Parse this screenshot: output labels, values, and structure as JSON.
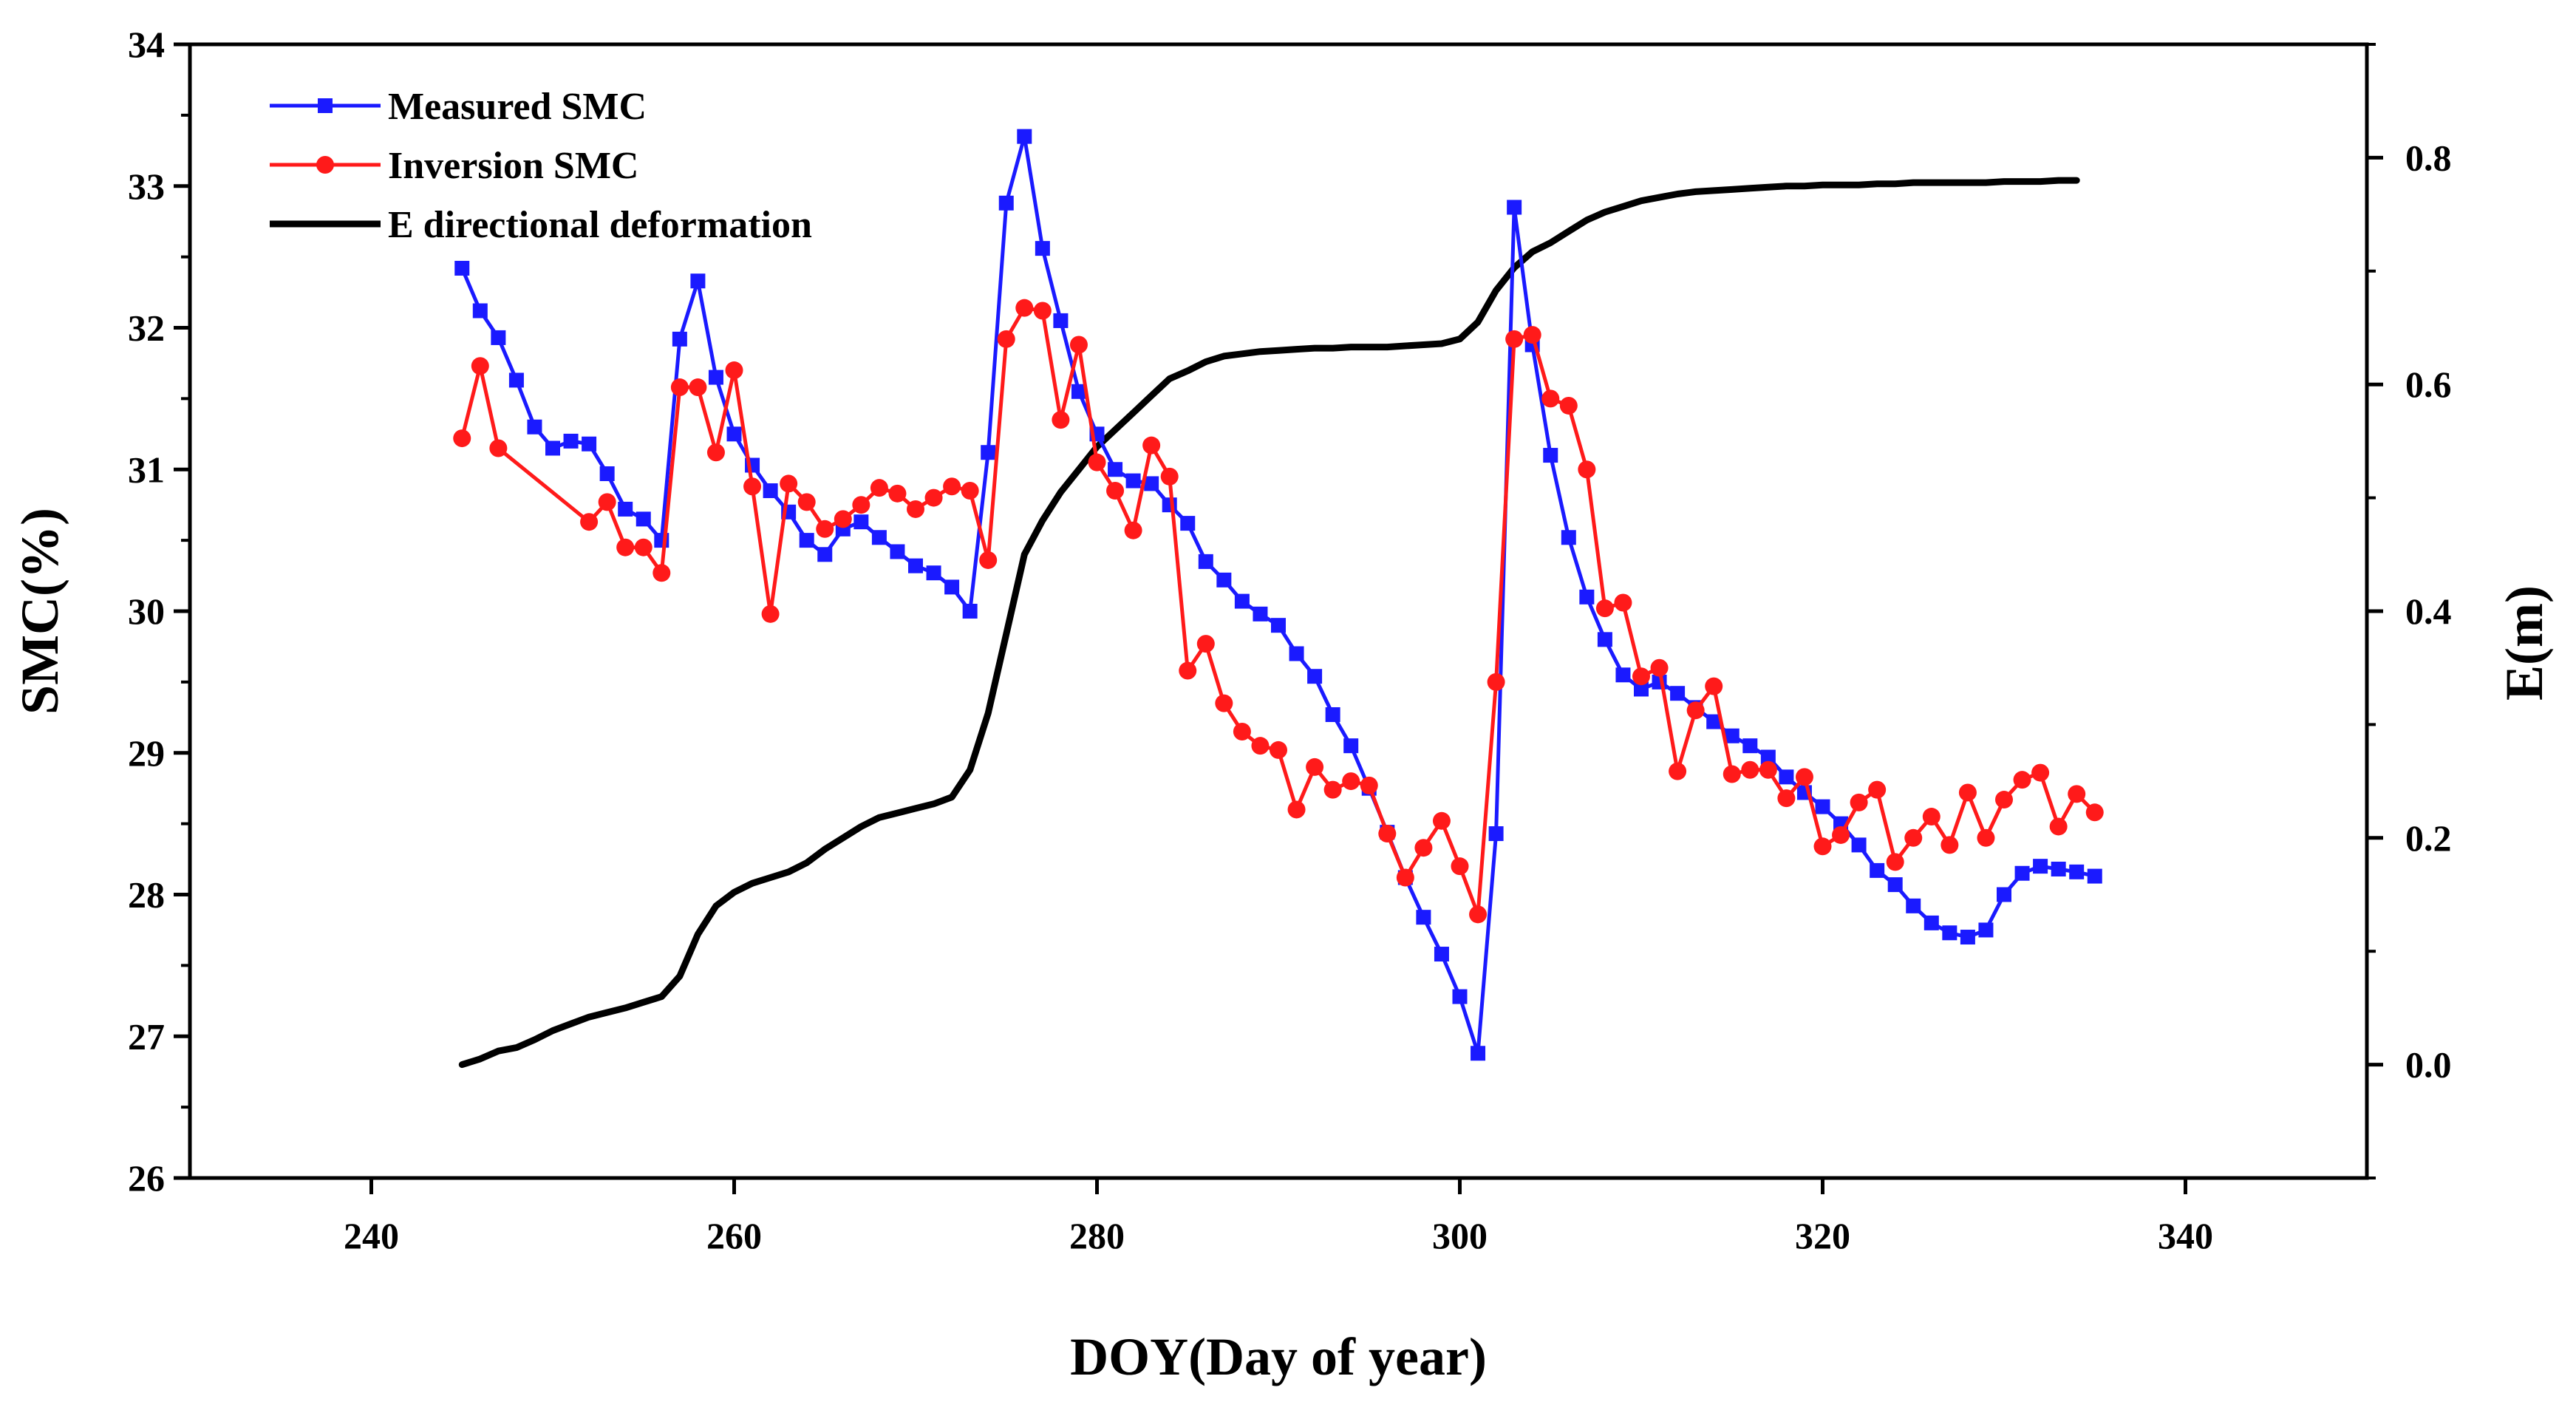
{
  "chart_data": {
    "type": "line",
    "title": "",
    "xlabel": "DOY(Day of year)",
    "ylabel": "SMC(%)",
    "y2label": "E(m)",
    "xlim": [
      230,
      350
    ],
    "ylim": [
      26,
      34
    ],
    "y2lim": [
      -0.1,
      0.9
    ],
    "xticks": [
      240,
      260,
      280,
      300,
      320,
      340
    ],
    "yticks": [
      26,
      27,
      28,
      29,
      30,
      31,
      32,
      33,
      34
    ],
    "y2ticks": [
      0.0,
      0.2,
      0.4,
      0.6,
      0.8
    ],
    "xtick_labels": [
      "240",
      "260",
      "280",
      "300",
      "320",
      "340"
    ],
    "ytick_labels": [
      "26",
      "27",
      "28",
      "29",
      "30",
      "31",
      "32",
      "33",
      "34"
    ],
    "y2tick_labels": [
      "0.0",
      "0.2",
      "0.4",
      "0.6",
      "0.8"
    ],
    "legend_position": "top-left",
    "series": [
      {
        "name": "Measured SMC",
        "axis": "left",
        "color": "#1a1aff",
        "marker": "square",
        "x": [
          245,
          246,
          247,
          248,
          249,
          250,
          251,
          252,
          253,
          254,
          255,
          256,
          257,
          258,
          259,
          260,
          261,
          262,
          263,
          264,
          265,
          266,
          267,
          268,
          269,
          270,
          271,
          272,
          273,
          274,
          275,
          276,
          277,
          278,
          279,
          280,
          281,
          282,
          283,
          284,
          285,
          286,
          287,
          288,
          289,
          290,
          291,
          292,
          293,
          294,
          295,
          296,
          297,
          298,
          299,
          300,
          301,
          302,
          303,
          304,
          305,
          306,
          307,
          308,
          309,
          310,
          311,
          312,
          313,
          314,
          315,
          316,
          317,
          318,
          319,
          320,
          321,
          322,
          323,
          324,
          325,
          326,
          327,
          328,
          329,
          330,
          331,
          332,
          333,
          334,
          335
        ],
        "y": [
          32.42,
          32.12,
          31.93,
          31.63,
          31.3,
          31.15,
          31.2,
          31.18,
          30.97,
          30.72,
          30.65,
          30.5,
          31.92,
          32.33,
          31.65,
          31.25,
          31.03,
          30.85,
          30.7,
          30.5,
          30.4,
          30.58,
          30.63,
          30.52,
          30.42,
          30.32,
          30.27,
          30.17,
          30.0,
          31.12,
          32.88,
          33.35,
          32.56,
          32.05,
          31.55,
          31.25,
          31.0,
          30.92,
          30.9,
          30.75,
          30.62,
          30.35,
          30.22,
          30.07,
          29.98,
          29.9,
          29.7,
          29.54,
          29.27,
          29.05,
          28.75,
          28.44,
          28.12,
          27.84,
          27.58,
          27.28,
          26.88,
          28.43,
          32.85,
          31.88,
          31.1,
          30.52,
          30.1,
          29.8,
          29.55,
          29.45,
          29.5,
          29.42,
          29.32,
          29.22,
          29.12,
          29.05,
          28.97,
          28.83,
          28.72,
          28.62,
          28.5,
          28.35,
          28.17,
          28.07,
          27.92,
          27.8,
          27.73,
          27.7,
          27.75,
          28.0,
          28.15,
          28.2,
          28.18,
          28.16,
          28.13
        ]
      },
      {
        "name": "Inversion SMC",
        "axis": "left",
        "color": "#ff1a1a",
        "marker": "circle",
        "x": [
          245,
          246,
          247,
          252,
          253,
          254,
          255,
          256,
          257,
          258,
          259,
          260,
          261,
          262,
          263,
          264,
          265,
          266,
          267,
          268,
          269,
          270,
          271,
          272,
          273,
          274,
          275,
          276,
          277,
          278,
          279,
          280,
          281,
          282,
          283,
          284,
          285,
          286,
          287,
          288,
          289,
          290,
          291,
          292,
          293,
          294,
          295,
          296,
          297,
          298,
          299,
          300,
          301,
          302,
          303,
          304,
          305,
          306,
          307,
          308,
          309,
          310,
          311,
          312,
          313,
          314,
          315,
          316,
          317,
          318,
          319,
          320,
          321,
          322,
          323,
          324,
          325,
          326,
          327,
          328,
          329,
          330,
          331,
          332,
          333,
          334,
          335
        ],
        "y": [
          31.22,
          31.73,
          31.15,
          30.63,
          30.77,
          30.45,
          30.45,
          30.27,
          31.58,
          31.58,
          31.12,
          31.7,
          30.88,
          29.98,
          30.9,
          30.77,
          30.58,
          30.65,
          30.75,
          30.87,
          30.83,
          30.72,
          30.8,
          30.88,
          30.85,
          30.36,
          31.92,
          32.14,
          32.12,
          31.35,
          31.88,
          31.05,
          30.85,
          30.57,
          31.17,
          30.95,
          29.58,
          29.77,
          29.35,
          29.15,
          29.05,
          29.02,
          28.6,
          28.9,
          28.74,
          28.8,
          28.77,
          28.43,
          28.12,
          28.33,
          28.52,
          28.2,
          27.86,
          29.5,
          31.92,
          31.95,
          31.5,
          31.45,
          31.0,
          30.02,
          30.06,
          29.54,
          29.6,
          28.87,
          29.3,
          29.47,
          28.85,
          28.88,
          28.88,
          28.68,
          28.83,
          28.34,
          28.42,
          28.65,
          28.74,
          28.23,
          28.4,
          28.55,
          28.35,
          28.72,
          28.4,
          28.67,
          28.81,
          28.86,
          28.48,
          28.71,
          28.58
        ]
      },
      {
        "name": "E directional deformation",
        "axis": "right",
        "color": "#000000",
        "marker": "none",
        "x": [
          245,
          246,
          247,
          248,
          249,
          250,
          251,
          252,
          253,
          254,
          255,
          256,
          257,
          258,
          259,
          260,
          261,
          262,
          263,
          264,
          265,
          266,
          267,
          268,
          269,
          270,
          271,
          272,
          273,
          274,
          275,
          276,
          277,
          278,
          279,
          280,
          281,
          282,
          283,
          284,
          285,
          286,
          287,
          288,
          289,
          290,
          291,
          292,
          293,
          294,
          295,
          296,
          297,
          298,
          299,
          300,
          301,
          302,
          303,
          304,
          305,
          306,
          307,
          308,
          309,
          310,
          311,
          312,
          313,
          314,
          315,
          316,
          317,
          318,
          319,
          320,
          321,
          322,
          323,
          324,
          325,
          326,
          327,
          328,
          329,
          330,
          331,
          332,
          333,
          334
        ],
        "y": [
          0.0,
          0.005,
          0.012,
          0.015,
          0.022,
          0.03,
          0.036,
          0.042,
          0.046,
          0.05,
          0.055,
          0.06,
          0.078,
          0.115,
          0.14,
          0.152,
          0.16,
          0.165,
          0.17,
          0.178,
          0.19,
          0.2,
          0.21,
          0.218,
          0.222,
          0.226,
          0.23,
          0.236,
          0.26,
          0.31,
          0.38,
          0.45,
          0.48,
          0.505,
          0.525,
          0.545,
          0.56,
          0.575,
          0.59,
          0.605,
          0.612,
          0.62,
          0.625,
          0.627,
          0.629,
          0.63,
          0.631,
          0.632,
          0.632,
          0.633,
          0.633,
          0.633,
          0.634,
          0.635,
          0.636,
          0.64,
          0.655,
          0.683,
          0.703,
          0.717,
          0.725,
          0.735,
          0.745,
          0.752,
          0.757,
          0.762,
          0.765,
          0.768,
          0.77,
          0.771,
          0.772,
          0.773,
          0.774,
          0.775,
          0.775,
          0.776,
          0.776,
          0.776,
          0.777,
          0.777,
          0.778,
          0.778,
          0.778,
          0.778,
          0.778,
          0.779,
          0.779,
          0.779,
          0.78,
          0.78
        ]
      }
    ]
  }
}
